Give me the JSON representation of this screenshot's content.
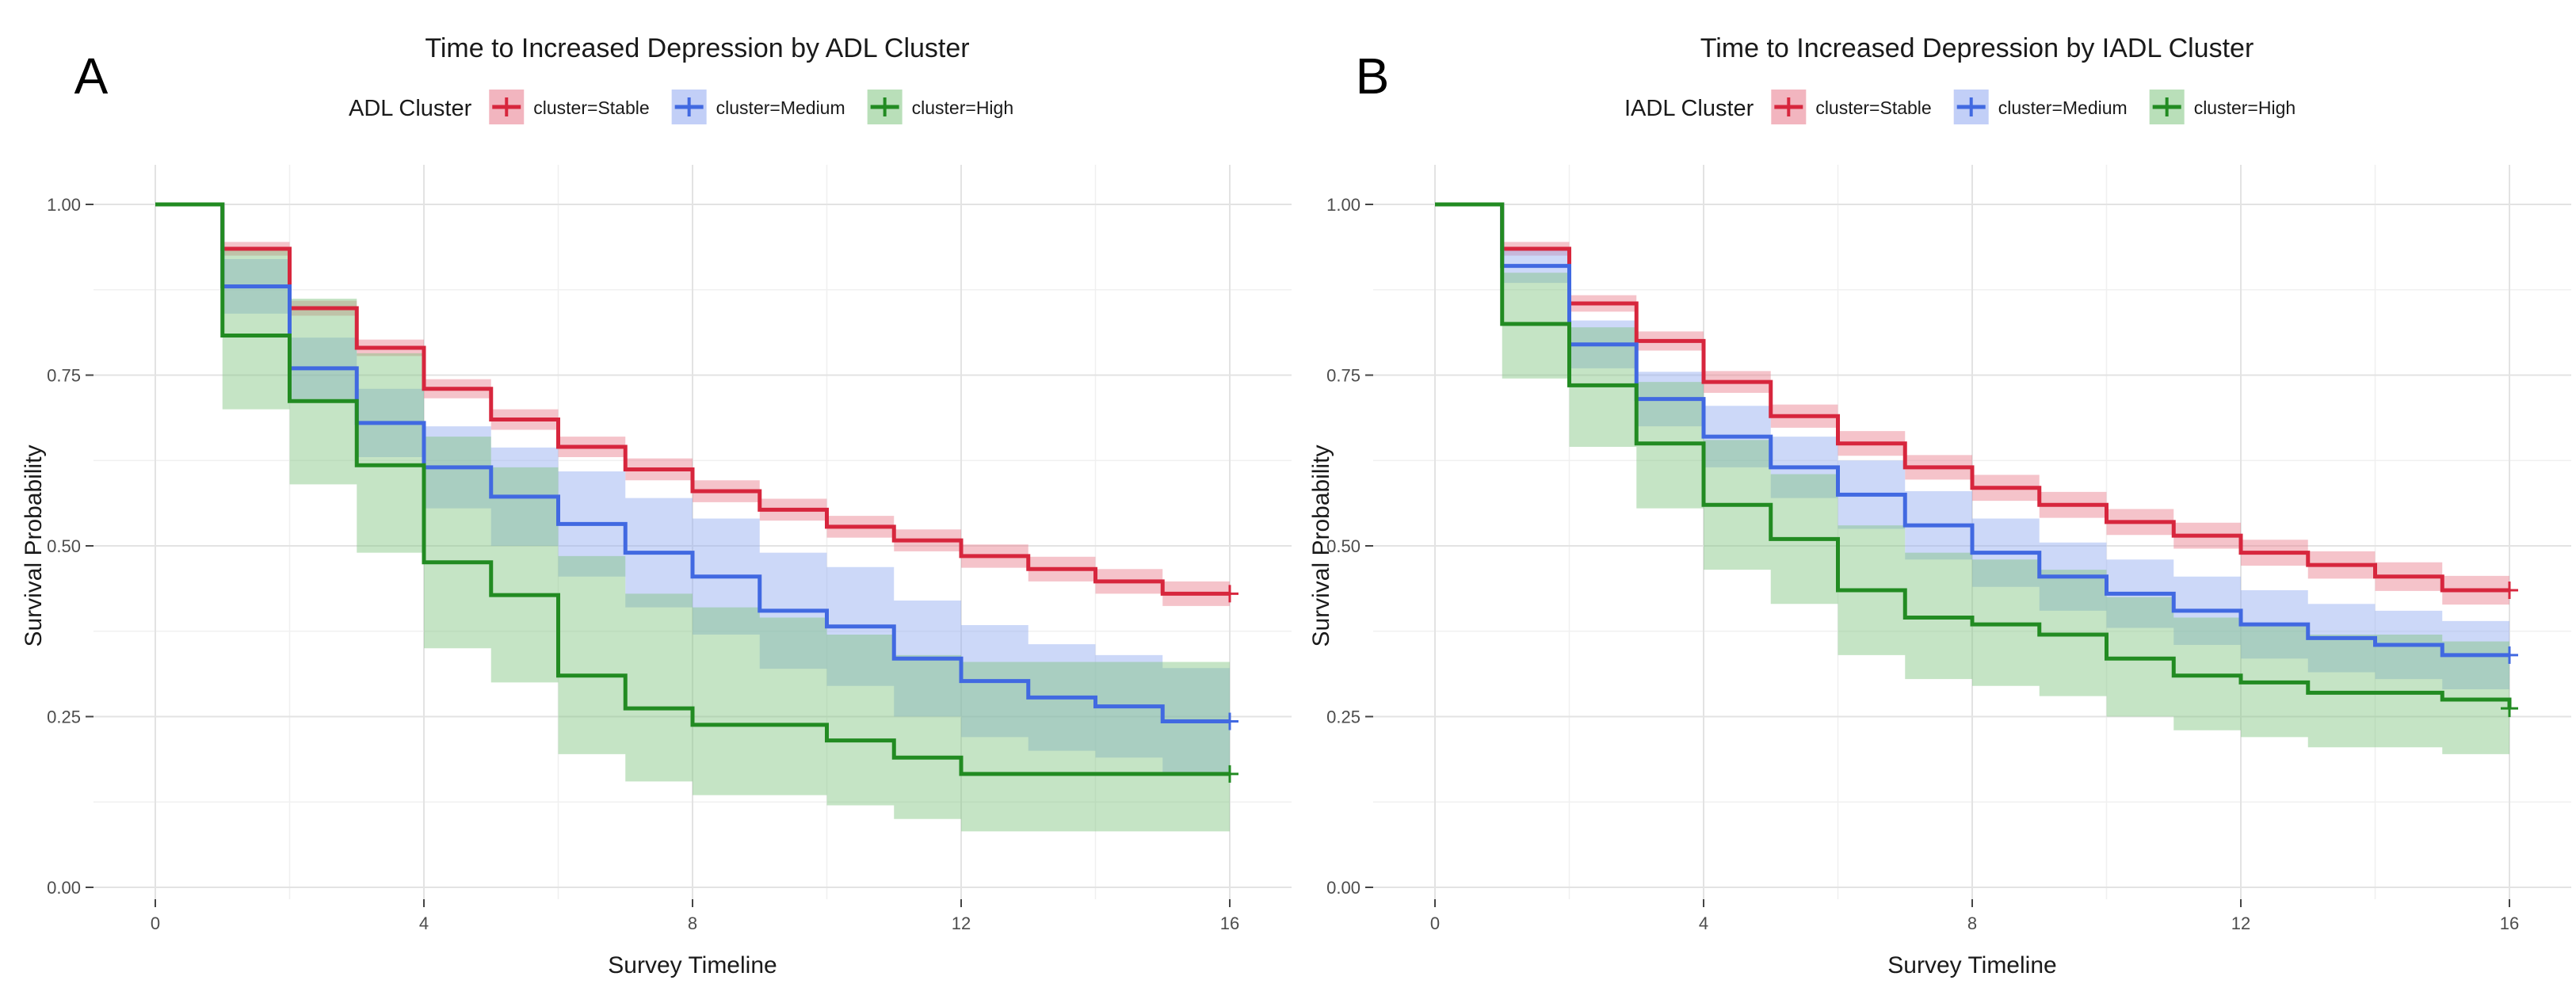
{
  "chart_data": [
    {
      "type": "line",
      "subtype": "kaplan-meier-step",
      "panel_label": "A",
      "title": "Time to Increased Depression by ADL Cluster",
      "legend_title": "ADL Cluster",
      "legend_position": "top",
      "xlabel": "Survey Timeline",
      "ylabel": "Survival Probability",
      "xlim": [
        0,
        16
      ],
      "ylim": [
        0,
        1
      ],
      "x_ticks": [
        0,
        4,
        8,
        12,
        16
      ],
      "x_tick_labels": [
        "0",
        "4",
        "8",
        "12",
        "16"
      ],
      "y_ticks": [
        0,
        0.25,
        0.5,
        0.75,
        1
      ],
      "y_tick_labels": [
        "0.00",
        "0.25",
        "0.50",
        "0.75",
        "1.00"
      ],
      "grid": true,
      "x": [
        0,
        1,
        2,
        3,
        4,
        5,
        6,
        7,
        8,
        9,
        10,
        11,
        12,
        13,
        14,
        15,
        16
      ],
      "series": [
        {
          "name": "cluster=Stable",
          "color": "#d7263d",
          "band_color": "#e8798a",
          "values": [
            1.0,
            0.935,
            0.848,
            0.79,
            0.73,
            0.685,
            0.645,
            0.612,
            0.58,
            0.553,
            0.528,
            0.508,
            0.485,
            0.466,
            0.448,
            0.43,
            0.43
          ],
          "lower": [
            1.0,
            0.925,
            0.837,
            0.778,
            0.716,
            0.67,
            0.63,
            0.596,
            0.564,
            0.537,
            0.512,
            0.492,
            0.468,
            0.448,
            0.43,
            0.412,
            0.412
          ],
          "upper": [
            1.0,
            0.945,
            0.859,
            0.802,
            0.744,
            0.7,
            0.66,
            0.628,
            0.596,
            0.569,
            0.544,
            0.524,
            0.502,
            0.484,
            0.466,
            0.448,
            0.448
          ]
        },
        {
          "name": "cluster=Medium",
          "color": "#4169e1",
          "band_color": "#8fa8f0",
          "values": [
            1.0,
            0.88,
            0.76,
            0.68,
            0.615,
            0.572,
            0.532,
            0.49,
            0.455,
            0.405,
            0.382,
            0.335,
            0.302,
            0.278,
            0.265,
            0.243,
            0.243
          ],
          "lower": [
            1.0,
            0.84,
            0.715,
            0.63,
            0.555,
            0.5,
            0.455,
            0.41,
            0.37,
            0.32,
            0.295,
            0.25,
            0.22,
            0.2,
            0.19,
            0.165,
            0.165
          ],
          "upper": [
            1.0,
            0.92,
            0.805,
            0.73,
            0.675,
            0.644,
            0.609,
            0.57,
            0.54,
            0.49,
            0.469,
            0.42,
            0.384,
            0.356,
            0.34,
            0.321,
            0.321
          ]
        },
        {
          "name": "cluster=High",
          "color": "#228b22",
          "band_color": "#7fc47f",
          "values": [
            1.0,
            0.808,
            0.712,
            0.618,
            0.476,
            0.428,
            0.31,
            0.262,
            0.238,
            0.238,
            0.215,
            0.19,
            0.166,
            0.166,
            0.166,
            0.166,
            0.166
          ],
          "lower": [
            1.0,
            0.7,
            0.59,
            0.49,
            0.35,
            0.3,
            0.195,
            0.155,
            0.135,
            0.135,
            0.12,
            0.1,
            0.082,
            0.082,
            0.082,
            0.082,
            0.082
          ],
          "upper": [
            1.0,
            0.935,
            0.862,
            0.782,
            0.66,
            0.615,
            0.485,
            0.43,
            0.41,
            0.395,
            0.37,
            0.34,
            0.33,
            0.33,
            0.33,
            0.33,
            0.33
          ]
        }
      ]
    },
    {
      "type": "line",
      "subtype": "kaplan-meier-step",
      "panel_label": "B",
      "title": "Time to Increased Depression by IADL Cluster",
      "legend_title": "IADL Cluster",
      "legend_position": "top",
      "xlabel": "Survey Timeline",
      "ylabel": "Survival Probability",
      "xlim": [
        0,
        16
      ],
      "ylim": [
        0,
        1
      ],
      "x_ticks": [
        0,
        4,
        8,
        12,
        16
      ],
      "x_tick_labels": [
        "0",
        "4",
        "8",
        "12",
        "16"
      ],
      "y_ticks": [
        0,
        0.25,
        0.5,
        0.75,
        1
      ],
      "y_tick_labels": [
        "0.00",
        "0.25",
        "0.50",
        "0.75",
        "1.00"
      ],
      "grid": true,
      "x": [
        0,
        1,
        2,
        3,
        4,
        5,
        6,
        7,
        8,
        9,
        10,
        11,
        12,
        13,
        14,
        15,
        16
      ],
      "series": [
        {
          "name": "cluster=Stable",
          "color": "#d7263d",
          "band_color": "#e8798a",
          "values": [
            1.0,
            0.935,
            0.855,
            0.8,
            0.74,
            0.69,
            0.65,
            0.615,
            0.585,
            0.56,
            0.535,
            0.515,
            0.49,
            0.472,
            0.455,
            0.435,
            0.435
          ],
          "lower": [
            1.0,
            0.925,
            0.843,
            0.786,
            0.724,
            0.673,
            0.632,
            0.597,
            0.566,
            0.541,
            0.516,
            0.496,
            0.471,
            0.452,
            0.434,
            0.414,
            0.414
          ],
          "upper": [
            1.0,
            0.945,
            0.867,
            0.814,
            0.756,
            0.707,
            0.668,
            0.633,
            0.604,
            0.579,
            0.554,
            0.534,
            0.509,
            0.492,
            0.476,
            0.456,
            0.456
          ]
        },
        {
          "name": "cluster=Medium",
          "color": "#4169e1",
          "band_color": "#8fa8f0",
          "values": [
            1.0,
            0.91,
            0.795,
            0.715,
            0.66,
            0.615,
            0.575,
            0.53,
            0.49,
            0.455,
            0.43,
            0.405,
            0.385,
            0.365,
            0.355,
            0.34,
            0.34
          ],
          "lower": [
            1.0,
            0.885,
            0.76,
            0.675,
            0.615,
            0.57,
            0.525,
            0.48,
            0.44,
            0.405,
            0.38,
            0.355,
            0.335,
            0.315,
            0.305,
            0.29,
            0.29
          ],
          "upper": [
            1.0,
            0.935,
            0.83,
            0.755,
            0.705,
            0.66,
            0.625,
            0.58,
            0.54,
            0.505,
            0.48,
            0.455,
            0.435,
            0.415,
            0.405,
            0.39,
            0.39
          ]
        },
        {
          "name": "cluster=High",
          "color": "#228b22",
          "band_color": "#7fc47f",
          "values": [
            1.0,
            0.825,
            0.735,
            0.65,
            0.56,
            0.51,
            0.435,
            0.395,
            0.385,
            0.37,
            0.335,
            0.31,
            0.3,
            0.285,
            0.285,
            0.275,
            0.262
          ],
          "lower": [
            1.0,
            0.745,
            0.645,
            0.555,
            0.465,
            0.415,
            0.34,
            0.305,
            0.295,
            0.28,
            0.25,
            0.23,
            0.22,
            0.205,
            0.205,
            0.195,
            0.195
          ],
          "upper": [
            1.0,
            0.9,
            0.82,
            0.74,
            0.655,
            0.605,
            0.53,
            0.49,
            0.48,
            0.465,
            0.425,
            0.395,
            0.385,
            0.37,
            0.37,
            0.36,
            0.36
          ]
        }
      ]
    }
  ]
}
